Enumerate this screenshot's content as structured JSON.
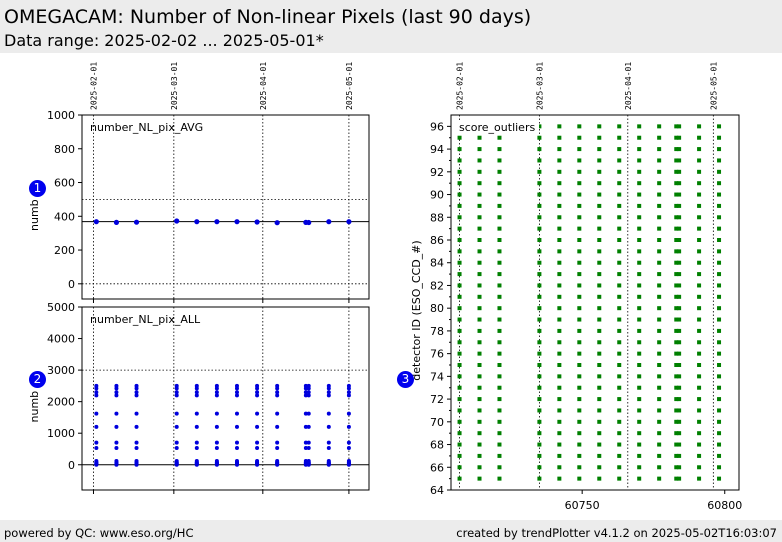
{
  "header": {
    "title": "OMEGACAM: Number of Non-linear Pixels (last 90 days)",
    "subtitle": "Data range: 2025-02-02 ... 2025-05-01*"
  },
  "footer": {
    "left": "powered by QC: www.eso.org/HC",
    "right": "created by trendPlotter v4.1.2 on 2025-05-02T16:03:07"
  },
  "badges": [
    "1",
    "2",
    "3"
  ],
  "colors": {
    "points": "#0000dd",
    "outliers": "#008000",
    "header_bg": "#ececec"
  },
  "chart_data": [
    {
      "type": "scatter",
      "panel": "top-left",
      "annotation": "number_NL_pix_AVG",
      "ylabel": "numb",
      "x_ticks": [
        "2025-02-01",
        "2025-03-01",
        "2025-04-01",
        "2025-05-01"
      ],
      "x_tick_days": [
        1,
        29,
        60,
        90
      ],
      "xlim_days": [
        -3,
        97
      ],
      "ylim": [
        -90,
        1000
      ],
      "y_ticks": [
        0,
        200,
        400,
        600,
        800,
        1000
      ],
      "reference_line": 368,
      "dotted_lines": [
        0,
        500
      ],
      "points": [
        {
          "day": 2,
          "y": 368
        },
        {
          "day": 9,
          "y": 364
        },
        {
          "day": 16,
          "y": 365
        },
        {
          "day": 30,
          "y": 372
        },
        {
          "day": 37,
          "y": 368
        },
        {
          "day": 44,
          "y": 368
        },
        {
          "day": 51,
          "y": 368
        },
        {
          "day": 58,
          "y": 366
        },
        {
          "day": 65,
          "y": 362
        },
        {
          "day": 75,
          "y": 364
        },
        {
          "day": 76,
          "y": 363
        },
        {
          "day": 83,
          "y": 368
        },
        {
          "day": 90,
          "y": 368
        }
      ]
    },
    {
      "type": "scatter",
      "panel": "bottom-left",
      "annotation": "number_NL_pix_ALL",
      "ylabel": "numb",
      "x_tick_days": [
        1,
        29,
        60,
        90
      ],
      "xlim_days": [
        -3,
        97
      ],
      "ylim": [
        -800,
        5000
      ],
      "y_ticks": [
        0,
        1000,
        2000,
        3000,
        4000,
        5000
      ],
      "reference_line": 0,
      "dotted_lines": [
        3000
      ],
      "epoch_days": [
        2,
        9,
        16,
        30,
        37,
        44,
        51,
        58,
        65,
        75,
        76,
        83,
        90
      ],
      "values_per_epoch": [
        0,
        20,
        40,
        60,
        80,
        120,
        530,
        700,
        1200,
        1620,
        2200,
        2300,
        2420,
        2500
      ]
    },
    {
      "type": "scatter",
      "panel": "right",
      "annotation": "score_outliers",
      "ylabel": "detector ID (ESO_CCD_#)",
      "x_ticks": [
        "2025-02-01",
        "2025-03-01",
        "2025-04-01",
        "2025-05-01"
      ],
      "x_tick_mjd": [
        60707,
        60735,
        60766,
        60796
      ],
      "xlim": [
        60704,
        60805
      ],
      "x_tick_labels": [
        "60750",
        "60800"
      ],
      "x_tick_values": [
        60750,
        60800
      ],
      "ylim": [
        64,
        97
      ],
      "y_ticks": [
        64,
        66,
        68,
        70,
        72,
        74,
        76,
        78,
        80,
        82,
        84,
        86,
        88,
        90,
        92,
        94,
        96
      ],
      "detector_range": [
        65,
        96
      ],
      "epochs_mjd": [
        60707,
        60714,
        60721,
        60735,
        60742,
        60749,
        60756,
        60763,
        60770,
        60777,
        60783,
        60784,
        60791,
        60798
      ]
    }
  ]
}
